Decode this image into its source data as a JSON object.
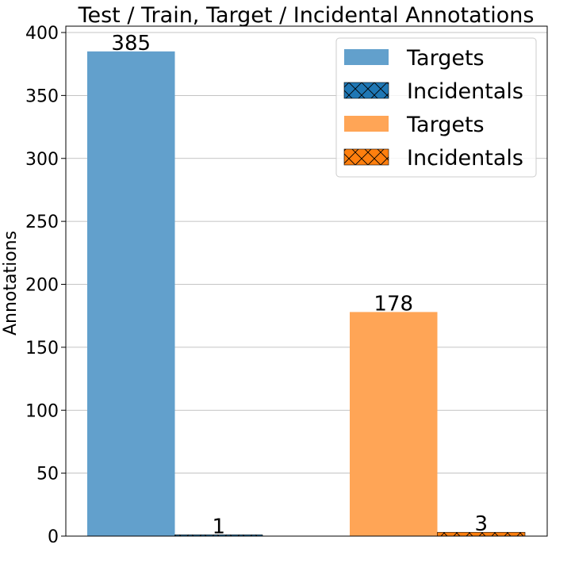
{
  "chart_data": {
    "type": "bar",
    "title": "Test / Train, Target / Incidental Annotations",
    "xlabel": "",
    "ylabel": "Annotations",
    "ylim": [
      0,
      400
    ],
    "yticks": [
      0,
      50,
      100,
      150,
      200,
      250,
      300,
      350,
      400
    ],
    "grid": "y",
    "legend_placement": "top-right",
    "groups": 2,
    "series": [
      {
        "name": "Targets",
        "group": 0,
        "slot": 0,
        "value": 385,
        "color": "#62a0cc",
        "hatch": false
      },
      {
        "name": "Incidentals",
        "group": 0,
        "slot": 1,
        "value": 1,
        "color": "#1f77b4",
        "hatch": true
      },
      {
        "name": "Targets",
        "group": 1,
        "slot": 0,
        "value": 178,
        "color": "#ffa556",
        "hatch": false
      },
      {
        "name": "Incidentals",
        "group": 1,
        "slot": 1,
        "value": 3,
        "color": "#ff7f0e",
        "hatch": true
      }
    ]
  }
}
